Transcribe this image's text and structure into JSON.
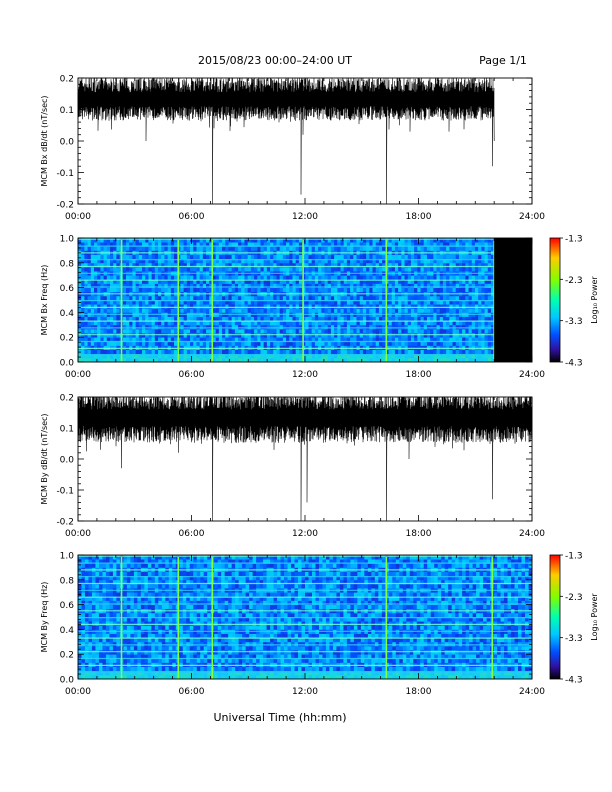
{
  "header": {
    "title": "2015/08/23  00:00–24:00 UT",
    "page": "Page 1/1"
  },
  "footer": {
    "xlabel": "Universal Time (hh:mm)"
  },
  "colorbar": {
    "label": "Log₁₀ Power",
    "ticks": [
      "-1.3",
      "-2.3",
      "-3.3",
      "-4.3"
    ],
    "colors": [
      "#ff0000",
      "#ffcc00",
      "#80ff00",
      "#00ffb0",
      "#00c8ff",
      "#0050ff",
      "#3010a0",
      "#000000"
    ]
  },
  "chart_data": [
    {
      "type": "line",
      "ylabel": "MCM Bx dB/dt (nT/sec)",
      "xlim": [
        0,
        24
      ],
      "ylim": [
        -0.2,
        0.2
      ],
      "x_tick_labels": [
        "00:00",
        "06:00",
        "12:00",
        "18:00",
        "24:00"
      ],
      "y_tick_labels": [
        "0.2",
        "0.1",
        "0.0",
        "-0.1",
        "-0.2"
      ],
      "data_end_hour": 22.0,
      "baseline": 0.13,
      "noise_amplitude": 0.05,
      "spikes": [
        {
          "x": 3.6,
          "y": 0.0
        },
        {
          "x": 7.1,
          "y": -0.2
        },
        {
          "x": 7.2,
          "y": 0.04
        },
        {
          "x": 11.8,
          "y": -0.17
        },
        {
          "x": 11.9,
          "y": 0.02
        },
        {
          "x": 16.3,
          "y": -0.2
        },
        {
          "x": 17.0,
          "y": 0.05
        },
        {
          "x": 19.6,
          "y": 0.03
        },
        {
          "x": 21.9,
          "y": -0.08
        }
      ]
    },
    {
      "type": "heatmap",
      "ylabel": "MCM Bx Freq (Hz)",
      "xlim": [
        0,
        24
      ],
      "ylim": [
        0.0,
        1.0
      ],
      "x_tick_labels": [
        "00:00",
        "06:00",
        "12:00",
        "18:00",
        "24:00"
      ],
      "y_tick_labels": [
        "1.0",
        "0.8",
        "0.6",
        "0.4",
        "0.2",
        "0.0"
      ],
      "zlim": [
        -4.3,
        -1.3
      ],
      "data_end_hour": 22.0,
      "bright_times": [
        2.3,
        5.3,
        7.1,
        11.9,
        16.3,
        22.0
      ]
    },
    {
      "type": "line",
      "ylabel": "MCM By dB/dt (nT/sec)",
      "xlim": [
        0,
        24
      ],
      "ylim": [
        -0.2,
        0.2
      ],
      "x_tick_labels": [
        "00:00",
        "06:00",
        "12:00",
        "18:00",
        "24:00"
      ],
      "y_tick_labels": [
        "0.2",
        "0.1",
        "0.0",
        "-0.1",
        "-0.2"
      ],
      "data_end_hour": 24.0,
      "baseline": 0.13,
      "noise_amplitude": 0.06,
      "spikes": [
        {
          "x": 2.3,
          "y": -0.03
        },
        {
          "x": 5.3,
          "y": 0.02
        },
        {
          "x": 7.1,
          "y": -0.2
        },
        {
          "x": 11.8,
          "y": -0.2
        },
        {
          "x": 12.1,
          "y": -0.14
        },
        {
          "x": 16.3,
          "y": -0.2
        },
        {
          "x": 17.5,
          "y": 0.0
        },
        {
          "x": 21.9,
          "y": -0.13
        }
      ]
    },
    {
      "type": "heatmap",
      "ylabel": "MCM By Freq (Hz)",
      "xlim": [
        0,
        24
      ],
      "ylim": [
        0.0,
        1.0
      ],
      "x_tick_labels": [
        "00:00",
        "06:00",
        "12:00",
        "18:00",
        "24:00"
      ],
      "y_tick_labels": [
        "1.0",
        "0.8",
        "0.6",
        "0.4",
        "0.2",
        "0.0"
      ],
      "zlim": [
        -4.3,
        -1.3
      ],
      "data_end_hour": 24.0,
      "bright_times": [
        2.3,
        5.3,
        7.1,
        16.3,
        21.9
      ]
    }
  ]
}
